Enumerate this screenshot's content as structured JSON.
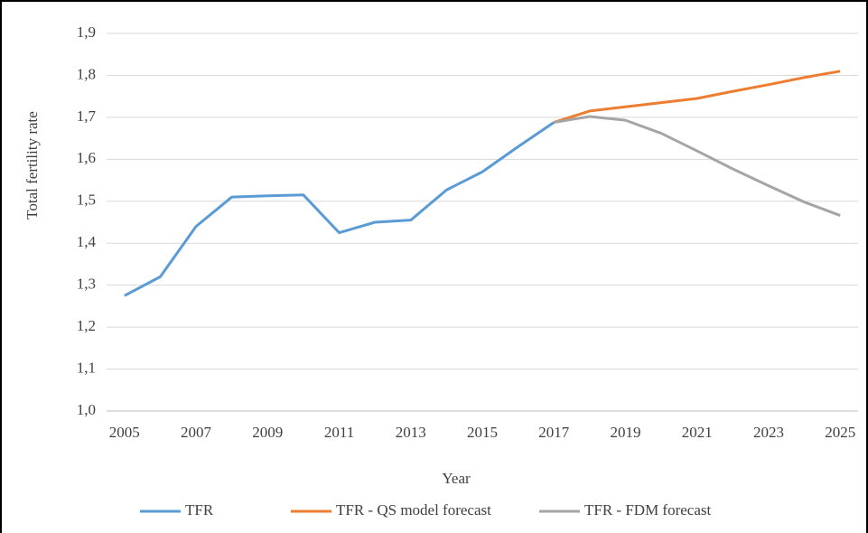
{
  "chart_data": {
    "type": "line",
    "x_label": "Year",
    "y_label": "Total fertility rate",
    "x": [
      2005,
      2006,
      2007,
      2008,
      2009,
      2010,
      2011,
      2012,
      2013,
      2014,
      2015,
      2016,
      2017,
      2018,
      2019,
      2020,
      2021,
      2022,
      2023,
      2024,
      2025
    ],
    "xlim": [
      2004.5,
      2025.5
    ],
    "xticks": [
      2005,
      2007,
      2009,
      2011,
      2013,
      2015,
      2017,
      2019,
      2021,
      2023,
      2025
    ],
    "ylim": [
      1.0,
      1.9
    ],
    "yticks": [
      {
        "value": 1.0,
        "label": "1,0"
      },
      {
        "value": 1.1,
        "label": "1,1"
      },
      {
        "value": 1.2,
        "label": "1,2"
      },
      {
        "value": 1.3,
        "label": "1,3"
      },
      {
        "value": 1.4,
        "label": "1,4"
      },
      {
        "value": 1.5,
        "label": "1,5"
      },
      {
        "value": 1.6,
        "label": "1,6"
      },
      {
        "value": 1.7,
        "label": "1,7"
      },
      {
        "value": 1.8,
        "label": "1,8"
      },
      {
        "value": 1.9,
        "label": "1,9"
      }
    ],
    "grid": true,
    "legend": "bottom",
    "series": [
      {
        "name": "TFR",
        "color": "#5b9bd5",
        "values": [
          1.275,
          1.32,
          1.44,
          1.51,
          1.513,
          1.515,
          1.425,
          1.45,
          1.455,
          1.527,
          1.57,
          1.63,
          1.688,
          null,
          null,
          null,
          null,
          null,
          null,
          null,
          null
        ]
      },
      {
        "name": "TFR - QS model forecast",
        "color": "#ed7d31",
        "values": [
          null,
          null,
          null,
          null,
          null,
          null,
          null,
          null,
          null,
          null,
          null,
          null,
          1.688,
          1.715,
          1.725,
          1.735,
          1.745,
          1.762,
          1.778,
          1.795,
          1.81
        ]
      },
      {
        "name": "TFR - FDM forecast",
        "color": "#a5a5a5",
        "values": [
          null,
          null,
          null,
          null,
          null,
          null,
          null,
          null,
          null,
          null,
          null,
          null,
          1.688,
          1.702,
          1.693,
          1.662,
          1.62,
          1.577,
          1.537,
          1.498,
          1.466
        ]
      }
    ]
  }
}
